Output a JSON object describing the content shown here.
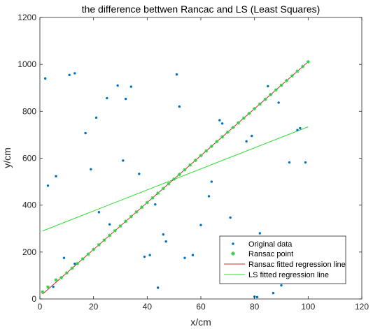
{
  "chart_data": {
    "type": "scatter",
    "title": "the difference bettwen Rancac and LS (Least Squares)",
    "xlabel": "x/cm",
    "ylabel": "y/cm",
    "xlim": [
      0,
      120
    ],
    "ylim": [
      0,
      1200
    ],
    "xticks": [
      0,
      20,
      40,
      60,
      80,
      100,
      120
    ],
    "yticks": [
      0,
      200,
      400,
      600,
      800,
      1000,
      1200
    ],
    "grid": false,
    "legend_position": "bottom-right",
    "colors": {
      "original": "#0072BD",
      "ransac_point": "#2ECC40",
      "ransac_line": "#D62728",
      "ls_line": "#33DD33"
    },
    "series": [
      {
        "name": "Original data",
        "kind": "points",
        "x": [
          2,
          3,
          5,
          6,
          11,
          13,
          9,
          13,
          17,
          19,
          21,
          22,
          25,
          26,
          29,
          31,
          32,
          34,
          37,
          39,
          41,
          43,
          44,
          46,
          47,
          51,
          52,
          54,
          57,
          60,
          63,
          64,
          67,
          68,
          71,
          77,
          79,
          80,
          81,
          82,
          85,
          87,
          89,
          90,
          93,
          96,
          97,
          99
        ],
        "y": [
          940,
          483,
          52,
          523,
          955,
          962,
          175,
          150,
          707,
          553,
          773,
          370,
          856,
          318,
          910,
          590,
          853,
          905,
          533,
          180,
          187,
          403,
          48,
          275,
          245,
          957,
          820,
          175,
          187,
          315,
          438,
          500,
          762,
          748,
          347,
          672,
          695,
          10,
          8,
          280,
          907,
          25,
          837,
          58,
          582,
          720,
          728,
          582
        ]
      },
      {
        "name": "Ransac point",
        "kind": "points",
        "x": [
          1,
          3,
          6,
          8,
          10,
          12,
          14,
          16,
          18,
          20,
          22,
          24,
          26,
          28,
          30,
          32,
          34,
          36,
          38,
          40,
          42,
          44,
          46,
          48,
          50,
          52,
          54,
          56,
          58,
          60,
          62,
          64,
          66,
          68,
          70,
          72,
          74,
          76,
          78,
          80,
          82,
          84,
          86,
          88,
          90,
          92,
          94,
          96,
          98,
          100
        ],
        "y": [
          30,
          51,
          81,
          91,
          111,
          131,
          151,
          171,
          191,
          211,
          231,
          251,
          271,
          291,
          311,
          331,
          351,
          371,
          391,
          411,
          431,
          451,
          471,
          491,
          511,
          531,
          551,
          571,
          591,
          611,
          631,
          651,
          671,
          691,
          711,
          731,
          751,
          771,
          791,
          811,
          831,
          851,
          871,
          891,
          911,
          931,
          951,
          971,
          991,
          1011
        ]
      },
      {
        "name": "Ransac fitted regression line",
        "kind": "line",
        "x": [
          1,
          100
        ],
        "y": [
          21,
          1011
        ]
      },
      {
        "name": "LS fitted regression line",
        "kind": "line",
        "x": [
          1,
          100
        ],
        "y": [
          290,
          734
        ]
      }
    ]
  }
}
